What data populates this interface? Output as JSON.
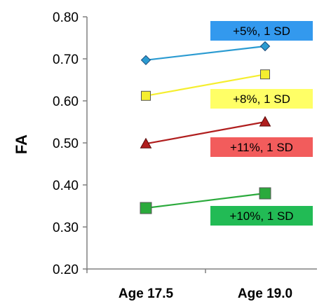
{
  "chart_data": {
    "type": "line",
    "categories": [
      "Age 17.5",
      "Age 19.0"
    ],
    "ylabel": "FA",
    "ylim": [
      0.2,
      0.8
    ],
    "yticks": [
      "0.20",
      "0.30",
      "0.40",
      "0.50",
      "0.60",
      "0.70",
      "0.80"
    ],
    "grid": false,
    "series": [
      {
        "values": [
          0.697,
          0.73
        ],
        "color": "#2B9BD1",
        "marker": "diamond"
      },
      {
        "values": [
          0.612,
          0.663
        ],
        "color": "#F5EE2F",
        "marker": "square"
      },
      {
        "values": [
          0.498,
          0.55
        ],
        "color": "#B01E1E",
        "marker": "triangle"
      },
      {
        "values": [
          0.345,
          0.38
        ],
        "color": "#2BAA3C",
        "marker": "square"
      }
    ],
    "annotations": [
      {
        "text": "+5%, 1 SD",
        "color": "#3399EE",
        "series": 0
      },
      {
        "text": "+8%, 1 SD",
        "color": "#FFFF66",
        "series": 1
      },
      {
        "text": "+11%, 1 SD",
        "color": "#F25C5C",
        "series": 2
      },
      {
        "text": "+10%, 1 SD",
        "color": "#22BB55",
        "series": 3
      }
    ]
  }
}
